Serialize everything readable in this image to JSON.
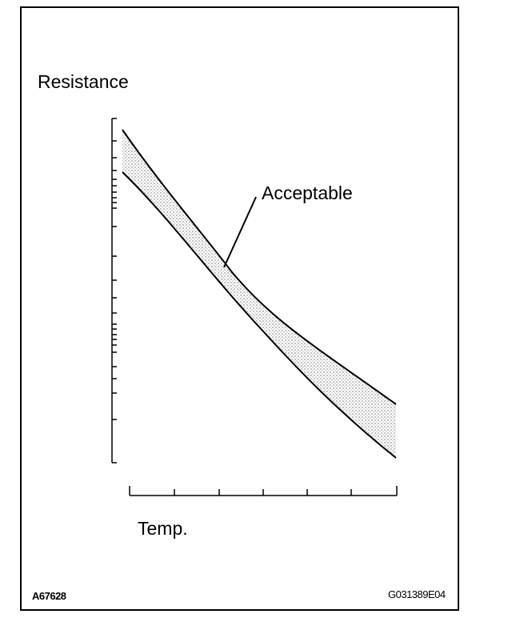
{
  "chart_data": {
    "type": "area",
    "ylabel": "Resistance",
    "xlabel": "Temp.",
    "yscale": "log",
    "grid": false,
    "annotations": [
      "Acceptable"
    ],
    "series": [
      {
        "name": "",
        "values": []
      }
    ],
    "band_color": "#d9d9d9",
    "line_color": "#000000"
  },
  "figure_codes": {
    "left": "A67628",
    "right": "G031389E04"
  }
}
